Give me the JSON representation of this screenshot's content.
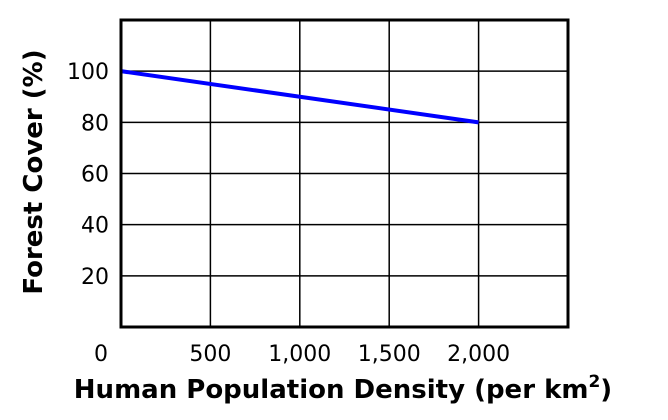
{
  "chart_data": {
    "type": "line",
    "title": "",
    "xlabel": "Human Population Density (per km",
    "xlabel_superscript": "2",
    "xlabel_suffix": ")",
    "ylabel": "Forest Cover (%)",
    "xlim": [
      0,
      2500
    ],
    "ylim": [
      0,
      120
    ],
    "x_ticks": [
      0,
      500,
      1000,
      1500,
      2000
    ],
    "x_tick_labels": [
      "0",
      "500",
      "1,000",
      "1,500",
      "2,000"
    ],
    "y_ticks": [
      20,
      40,
      60,
      80,
      100
    ],
    "y_tick_labels": [
      "20",
      "40",
      "60",
      "80",
      "100"
    ],
    "grid": true,
    "legend": "none",
    "series": [
      {
        "x": [
          0,
          2000
        ],
        "y": [
          100,
          80
        ],
        "color": "#0000ff"
      }
    ],
    "colors": {
      "grid": "#000000",
      "frame": "#000000",
      "line": "#0000ff"
    }
  }
}
